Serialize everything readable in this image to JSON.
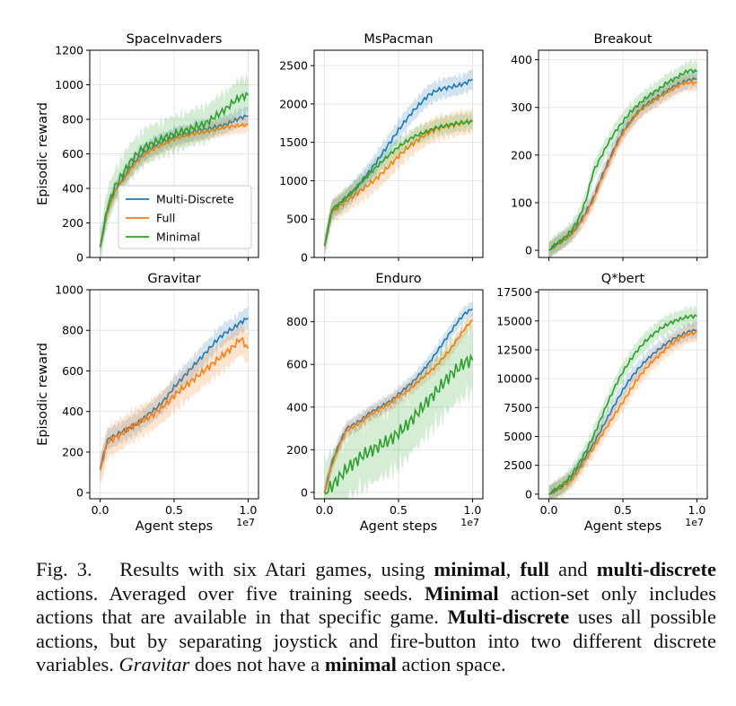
{
  "colors": {
    "multi": "#1f77b4",
    "full": "#ff7f0e",
    "minimal": "#2ca02c",
    "grid": "#e6e6e6",
    "axis": "#000000"
  },
  "shared": {
    "ylabel": "Episodic reward",
    "xlabel": "Agent steps",
    "x_offset_label": "1e7",
    "x_ticks": [
      0.0,
      0.5,
      1.0
    ],
    "x_tick_labels": [
      "0.0",
      "0.5",
      "1.0"
    ],
    "legend": [
      "Multi-Discrete",
      "Full",
      "Minimal"
    ]
  },
  "chart_data": [
    {
      "type": "line",
      "title": "SpaceInvaders",
      "xlim": [
        -0.07,
        1.07
      ],
      "ylim": [
        0,
        1200
      ],
      "y_ticks": [
        0,
        200,
        400,
        600,
        800,
        1000,
        1200
      ],
      "y_tick_labels": [
        "0",
        "200",
        "400",
        "600",
        "800",
        "1000",
        "1200"
      ],
      "x": [
        0,
        0.05,
        0.1,
        0.15,
        0.2,
        0.25,
        0.3,
        0.35,
        0.4,
        0.45,
        0.5,
        0.55,
        0.6,
        0.65,
        0.7,
        0.75,
        0.8,
        0.85,
        0.9,
        0.95,
        1.0
      ],
      "series": [
        {
          "name": "Multi-Discrete",
          "key": "multi",
          "values": [
            60,
            280,
            390,
            450,
            520,
            570,
            610,
            640,
            660,
            680,
            700,
            710,
            720,
            735,
            740,
            750,
            760,
            770,
            790,
            810,
            820
          ],
          "band": 60
        },
        {
          "name": "Full",
          "key": "full",
          "values": [
            60,
            270,
            380,
            440,
            505,
            555,
            595,
            625,
            645,
            665,
            685,
            700,
            710,
            720,
            725,
            735,
            745,
            755,
            760,
            765,
            770
          ],
          "band": 55
        },
        {
          "name": "Minimal",
          "key": "minimal",
          "values": [
            60,
            290,
            410,
            480,
            550,
            600,
            640,
            660,
            680,
            700,
            715,
            730,
            740,
            760,
            770,
            800,
            830,
            860,
            900,
            930,
            940
          ],
          "band": 120
        }
      ],
      "legend_loc": "lower-left"
    },
    {
      "type": "line",
      "title": "MsPacman",
      "xlim": [
        -0.07,
        1.07
      ],
      "ylim": [
        0,
        2700
      ],
      "y_ticks": [
        0,
        500,
        1000,
        1500,
        2000,
        2500
      ],
      "y_tick_labels": [
        "0",
        "500",
        "1000",
        "1500",
        "2000",
        "2500"
      ],
      "x": [
        0,
        0.05,
        0.1,
        0.15,
        0.2,
        0.25,
        0.3,
        0.35,
        0.4,
        0.45,
        0.5,
        0.55,
        0.6,
        0.65,
        0.7,
        0.75,
        0.8,
        0.85,
        0.9,
        0.95,
        1.0
      ],
      "series": [
        {
          "name": "Multi-Discrete",
          "key": "multi",
          "values": [
            150,
            610,
            690,
            780,
            870,
            990,
            1110,
            1240,
            1380,
            1520,
            1660,
            1790,
            1910,
            2010,
            2110,
            2170,
            2200,
            2220,
            2240,
            2270,
            2320
          ],
          "band": 150
        },
        {
          "name": "Full",
          "key": "full",
          "values": [
            150,
            600,
            670,
            740,
            810,
            880,
            950,
            1030,
            1120,
            1220,
            1320,
            1410,
            1490,
            1560,
            1620,
            1670,
            1700,
            1720,
            1740,
            1760,
            1780
          ],
          "band": 180
        },
        {
          "name": "Minimal",
          "key": "minimal",
          "values": [
            150,
            630,
            700,
            790,
            880,
            980,
            1080,
            1180,
            1270,
            1360,
            1440,
            1510,
            1570,
            1610,
            1650,
            1690,
            1710,
            1730,
            1750,
            1760,
            1770
          ],
          "band": 130
        }
      ]
    },
    {
      "type": "line",
      "title": "Breakout",
      "xlim": [
        -0.07,
        1.07
      ],
      "ylim": [
        -15,
        420
      ],
      "y_ticks": [
        0,
        100,
        200,
        300,
        400
      ],
      "y_tick_labels": [
        "0",
        "100",
        "200",
        "300",
        "400"
      ],
      "x": [
        0,
        0.05,
        0.1,
        0.15,
        0.2,
        0.25,
        0.3,
        0.35,
        0.4,
        0.45,
        0.5,
        0.55,
        0.6,
        0.65,
        0.7,
        0.75,
        0.8,
        0.85,
        0.9,
        0.95,
        1.0
      ],
      "series": [
        {
          "name": "Multi-Discrete",
          "key": "multi",
          "values": [
            0,
            12,
            22,
            35,
            55,
            80,
            110,
            150,
            185,
            220,
            250,
            270,
            290,
            305,
            315,
            325,
            335,
            345,
            352,
            358,
            360
          ],
          "band": 20
        },
        {
          "name": "Full",
          "key": "full",
          "values": [
            0,
            12,
            22,
            33,
            52,
            75,
            105,
            145,
            180,
            215,
            245,
            268,
            288,
            302,
            312,
            322,
            332,
            340,
            350,
            352,
            352
          ],
          "band": 20
        },
        {
          "name": "Minimal",
          "key": "minimal",
          "values": [
            0,
            14,
            25,
            40,
            65,
            105,
            165,
            195,
            225,
            250,
            270,
            290,
            305,
            318,
            330,
            340,
            352,
            360,
            370,
            378,
            375
          ],
          "band": 22
        }
      ]
    },
    {
      "type": "line",
      "title": "Gravitar",
      "xlim": [
        -0.07,
        1.07
      ],
      "ylim": [
        -30,
        1000
      ],
      "y_ticks": [
        0,
        200,
        400,
        600,
        800,
        1000
      ],
      "y_tick_labels": [
        "0",
        "200",
        "400",
        "600",
        "800",
        "1000"
      ],
      "x": [
        0,
        0.05,
        0.1,
        0.15,
        0.2,
        0.25,
        0.3,
        0.35,
        0.4,
        0.45,
        0.5,
        0.55,
        0.6,
        0.65,
        0.7,
        0.75,
        0.8,
        0.85,
        0.9,
        0.95,
        1.0
      ],
      "series": [
        {
          "name": "Multi-Discrete",
          "key": "multi",
          "values": [
            120,
            260,
            280,
            300,
            320,
            340,
            370,
            400,
            430,
            470,
            520,
            560,
            600,
            640,
            680,
            720,
            760,
            790,
            810,
            840,
            860
          ],
          "band": 60
        },
        {
          "name": "Full",
          "key": "full",
          "values": [
            110,
            250,
            270,
            290,
            320,
            340,
            360,
            380,
            410,
            440,
            480,
            510,
            540,
            570,
            600,
            630,
            660,
            690,
            720,
            760,
            710
          ],
          "band": 90
        }
      ]
    },
    {
      "type": "line",
      "title": "Enduro",
      "xlim": [
        -0.07,
        1.07
      ],
      "ylim": [
        -30,
        950
      ],
      "y_ticks": [
        0,
        200,
        400,
        600,
        800
      ],
      "y_tick_labels": [
        "0",
        "200",
        "400",
        "600",
        "800"
      ],
      "x": [
        0,
        0.05,
        0.1,
        0.15,
        0.2,
        0.25,
        0.3,
        0.35,
        0.4,
        0.45,
        0.5,
        0.55,
        0.6,
        0.65,
        0.7,
        0.75,
        0.8,
        0.85,
        0.9,
        0.95,
        1.0
      ],
      "series": [
        {
          "name": "Multi-Discrete",
          "key": "multi",
          "values": [
            0,
            140,
            230,
            300,
            320,
            340,
            370,
            390,
            410,
            430,
            460,
            490,
            520,
            560,
            600,
            650,
            700,
            750,
            800,
            840,
            860
          ],
          "band": 40
        },
        {
          "name": "Full",
          "key": "full",
          "values": [
            0,
            130,
            220,
            290,
            310,
            330,
            360,
            380,
            400,
            420,
            450,
            470,
            500,
            530,
            560,
            590,
            630,
            670,
            720,
            770,
            810
          ],
          "band": 40
        },
        {
          "name": "Minimal",
          "key": "minimal",
          "values": [
            0,
            30,
            70,
            110,
            140,
            170,
            190,
            210,
            230,
            250,
            280,
            310,
            350,
            390,
            430,
            470,
            510,
            550,
            580,
            610,
            620
          ],
          "band": 180
        }
      ]
    },
    {
      "type": "line",
      "title": "Q*bert",
      "xlim": [
        -0.07,
        1.07
      ],
      "ylim": [
        -400,
        17700
      ],
      "y_ticks": [
        0,
        2500,
        5000,
        7500,
        10000,
        12500,
        15000,
        17500
      ],
      "y_tick_labels": [
        "0",
        "2500",
        "5000",
        "7500",
        "10000",
        "12500",
        "15000",
        "17500"
      ],
      "x": [
        0,
        0.05,
        0.1,
        0.15,
        0.2,
        0.25,
        0.3,
        0.35,
        0.4,
        0.45,
        0.5,
        0.55,
        0.6,
        0.65,
        0.7,
        0.75,
        0.8,
        0.85,
        0.9,
        0.95,
        1.0
      ],
      "series": [
        {
          "name": "Multi-Discrete",
          "key": "multi",
          "values": [
            0,
            400,
            800,
            1400,
            2300,
            3300,
            4300,
            5500,
            6700,
            7900,
            9000,
            10000,
            10800,
            11500,
            12100,
            12600,
            13100,
            13500,
            13800,
            14100,
            14200
          ],
          "band": 800
        },
        {
          "name": "Full",
          "key": "full",
          "values": [
            0,
            350,
            700,
            1200,
            2000,
            3000,
            4000,
            5000,
            6000,
            7000,
            8000,
            9000,
            10000,
            10800,
            11500,
            12100,
            12700,
            13200,
            13600,
            13900,
            14000
          ],
          "band": 900
        },
        {
          "name": "Minimal",
          "key": "minimal",
          "values": [
            0,
            450,
            900,
            1600,
            2600,
            3700,
            5000,
            6500,
            8000,
            9400,
            10600,
            11600,
            12500,
            13200,
            13800,
            14300,
            14700,
            15000,
            15200,
            15400,
            15400
          ],
          "band": 900
        }
      ]
    }
  ],
  "caption": {
    "label": "Fig. 3.",
    "t1": "Results with six Atari games, using ",
    "b1": "minimal",
    "t2": ", ",
    "b2": "full",
    "t3": " and ",
    "b3": "multi-discrete",
    "t4": " actions. Averaged over five training seeds. ",
    "b4": "Minimal",
    "t5": " action-set only includes actions that are available in that specific game. ",
    "b5": "Multi-discrete",
    "t6": " uses all possible actions, but by separating joystick and fire-button into two different discrete variables. ",
    "i1": "Gravitar",
    "t7": " does not have a ",
    "b6": "minimal",
    "t8": " action space."
  }
}
